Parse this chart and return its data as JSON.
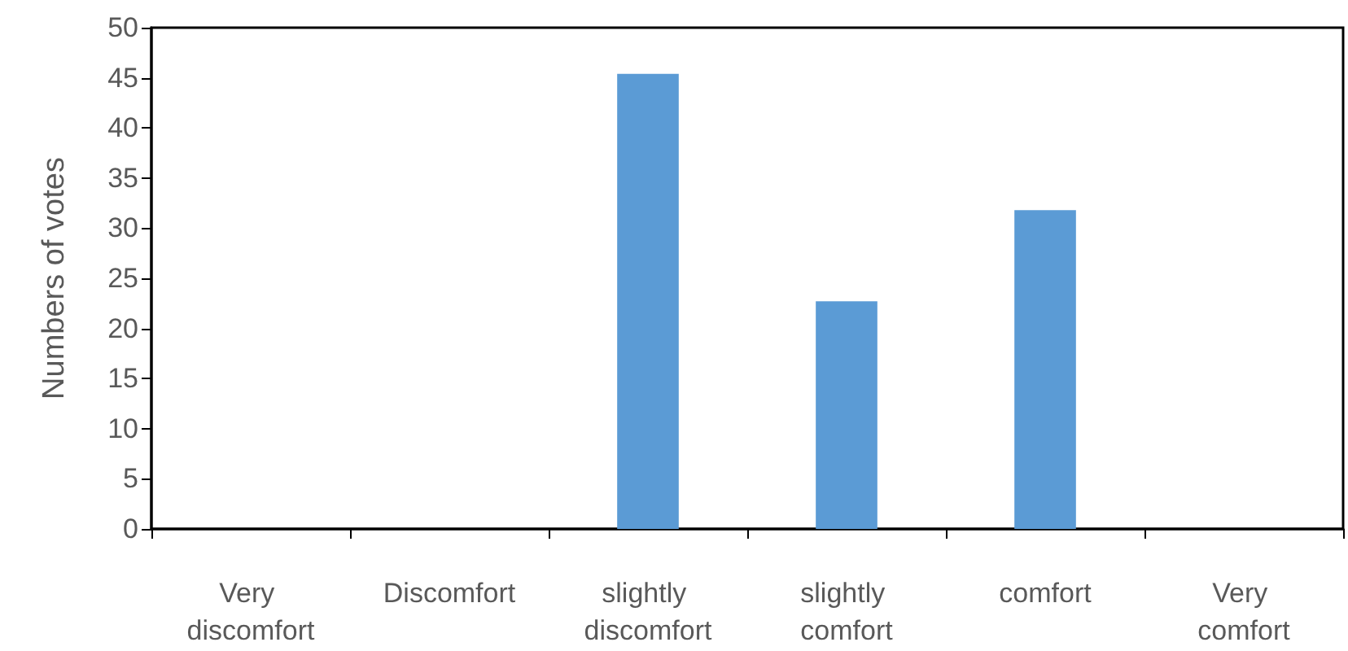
{
  "chart_data": {
    "type": "bar",
    "ylabel": "Numbers of votes",
    "categories": [
      "Very discomfort",
      "Discomfort",
      "slightly discomfort",
      "slightly comfort",
      "comfort",
      "Very comfort"
    ],
    "values": [
      0,
      0,
      45.4,
      22.7,
      31.8,
      0
    ],
    "color": "#5b9bd5",
    "ylim": [
      0,
      50
    ],
    "yticks": [
      0,
      5,
      10,
      15,
      20,
      25,
      30,
      35,
      40,
      45,
      50
    ],
    "grid": false
  }
}
